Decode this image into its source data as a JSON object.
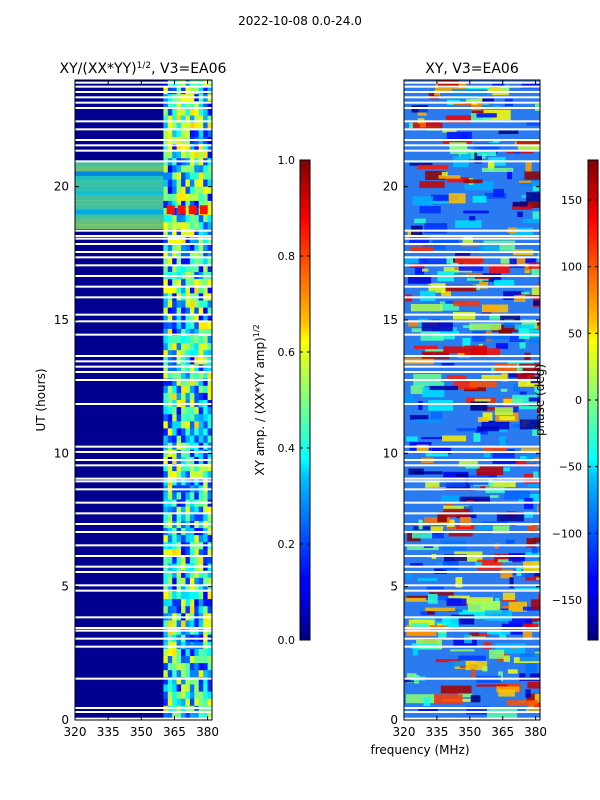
{
  "suptitle": "2022-10-08 0.0-24.0",
  "common_xlabel": "frequency (MHz)",
  "chart_data": [
    {
      "type": "heatmap",
      "title_main": "XY/(XX*YY)",
      "title_sup": "1/2",
      "title_tail": ", V3=EA06",
      "xlabel": "",
      "ylabel": "UT (hours)",
      "xlim": [
        320,
        382
      ],
      "ylim": [
        0,
        24
      ],
      "xticks": [
        "320",
        "335",
        "350",
        "365",
        "380"
      ],
      "xtick_values": [
        320,
        335,
        350,
        365,
        380
      ],
      "yticks": [
        "0",
        "5",
        "10",
        "15",
        "20"
      ],
      "ytick_values": [
        0,
        5,
        10,
        15,
        20
      ],
      "colorbar": {
        "label_main": "XY amp. / (XX*YY amp)",
        "label_sup": "1/2",
        "range": [
          0.0,
          1.0
        ],
        "ticks": [
          "0.0",
          "0.2",
          "0.4",
          "0.6",
          "0.8",
          "1.0"
        ],
        "tick_values": [
          0.0,
          0.2,
          0.4,
          0.6,
          0.8,
          1.0
        ]
      }
    },
    {
      "type": "heatmap",
      "title_main": "XY, V3=EA06",
      "xlabel": "frequency (MHz)",
      "ylabel": "",
      "xlim": [
        320,
        382
      ],
      "ylim": [
        0,
        24
      ],
      "xticks": [
        "320",
        "335",
        "350",
        "365",
        "380"
      ],
      "xtick_values": [
        320,
        335,
        350,
        365,
        380
      ],
      "yticks": [
        "0",
        "5",
        "10",
        "15",
        "20"
      ],
      "ytick_values": [
        0,
        5,
        10,
        15,
        20
      ],
      "colorbar": {
        "label_main": "phase (deg)",
        "range": [
          -180,
          180
        ],
        "ticks": [
          "−150",
          "−100",
          "−50",
          "0",
          "50",
          "100",
          "150"
        ],
        "tick_values": [
          -150,
          -100,
          -50,
          0,
          50,
          100,
          150
        ]
      }
    }
  ],
  "flagged_ut_hours": [
    0.05,
    0.3,
    0.45,
    1.55,
    2.75,
    3.05,
    3.35,
    3.45,
    3.85,
    4.85,
    5.05,
    5.55,
    5.75,
    6.15,
    6.55,
    7.05,
    7.35,
    7.75,
    8.15,
    8.65,
    8.95,
    9.05,
    9.55,
    9.75,
    10.05,
    10.25,
    11.85,
    12.75,
    13.05,
    13.25,
    13.45,
    13.65,
    14.45,
    14.95,
    15.2,
    15.85,
    16.25,
    16.65,
    17.05,
    17.35,
    17.55,
    17.85,
    18.05,
    18.15,
    18.35,
    20.95,
    21.35,
    21.55,
    21.75,
    22.15,
    22.45,
    22.95,
    23.15,
    23.35,
    23.55,
    23.75,
    23.9
  ]
}
